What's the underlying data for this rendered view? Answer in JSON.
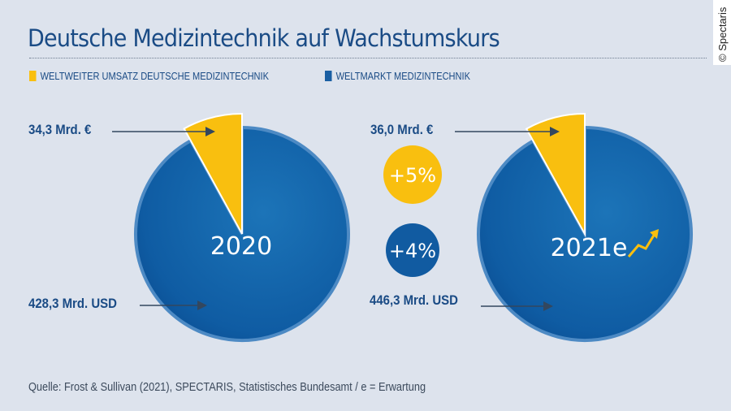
{
  "title": "Deutsche Medizintechnik auf Wachstumskurs",
  "copyright": "© Spectaris",
  "legend": [
    {
      "label": "WELTWEITER UMSATZ DEUTSCHE MEDIZINTECHNIK",
      "color": "#f9bf0f"
    },
    {
      "label": "WELTMARKT MEDIZINTECHNIK",
      "color": "#1a5fa3"
    }
  ],
  "chart_data": {
    "type": "pie",
    "title": "Deutsche Medizintechnik auf Wachstumskurs",
    "pies": [
      {
        "year": "2020",
        "german_label": "34,3 Mrd. €",
        "german_value": 34.3,
        "world_label": "428,3 Mrd. USD",
        "world_value": 428.3
      },
      {
        "year": "2021e",
        "german_label": "36,0 Mrd. €",
        "german_value": 36.0,
        "world_label": "446,3 Mrd. USD",
        "world_value": 446.3
      }
    ],
    "growth": [
      {
        "label": "+5%",
        "color": "#f9bf0f"
      },
      {
        "label": "+4%",
        "color": "#1a5fa3"
      }
    ],
    "colors": {
      "german": "#f9bf0f",
      "world": "#1a5fa3"
    }
  },
  "source": "Quelle: Frost & Sullivan (2021), SPECTARIS, Statistisches Bundesamt  / e = Erwartung"
}
